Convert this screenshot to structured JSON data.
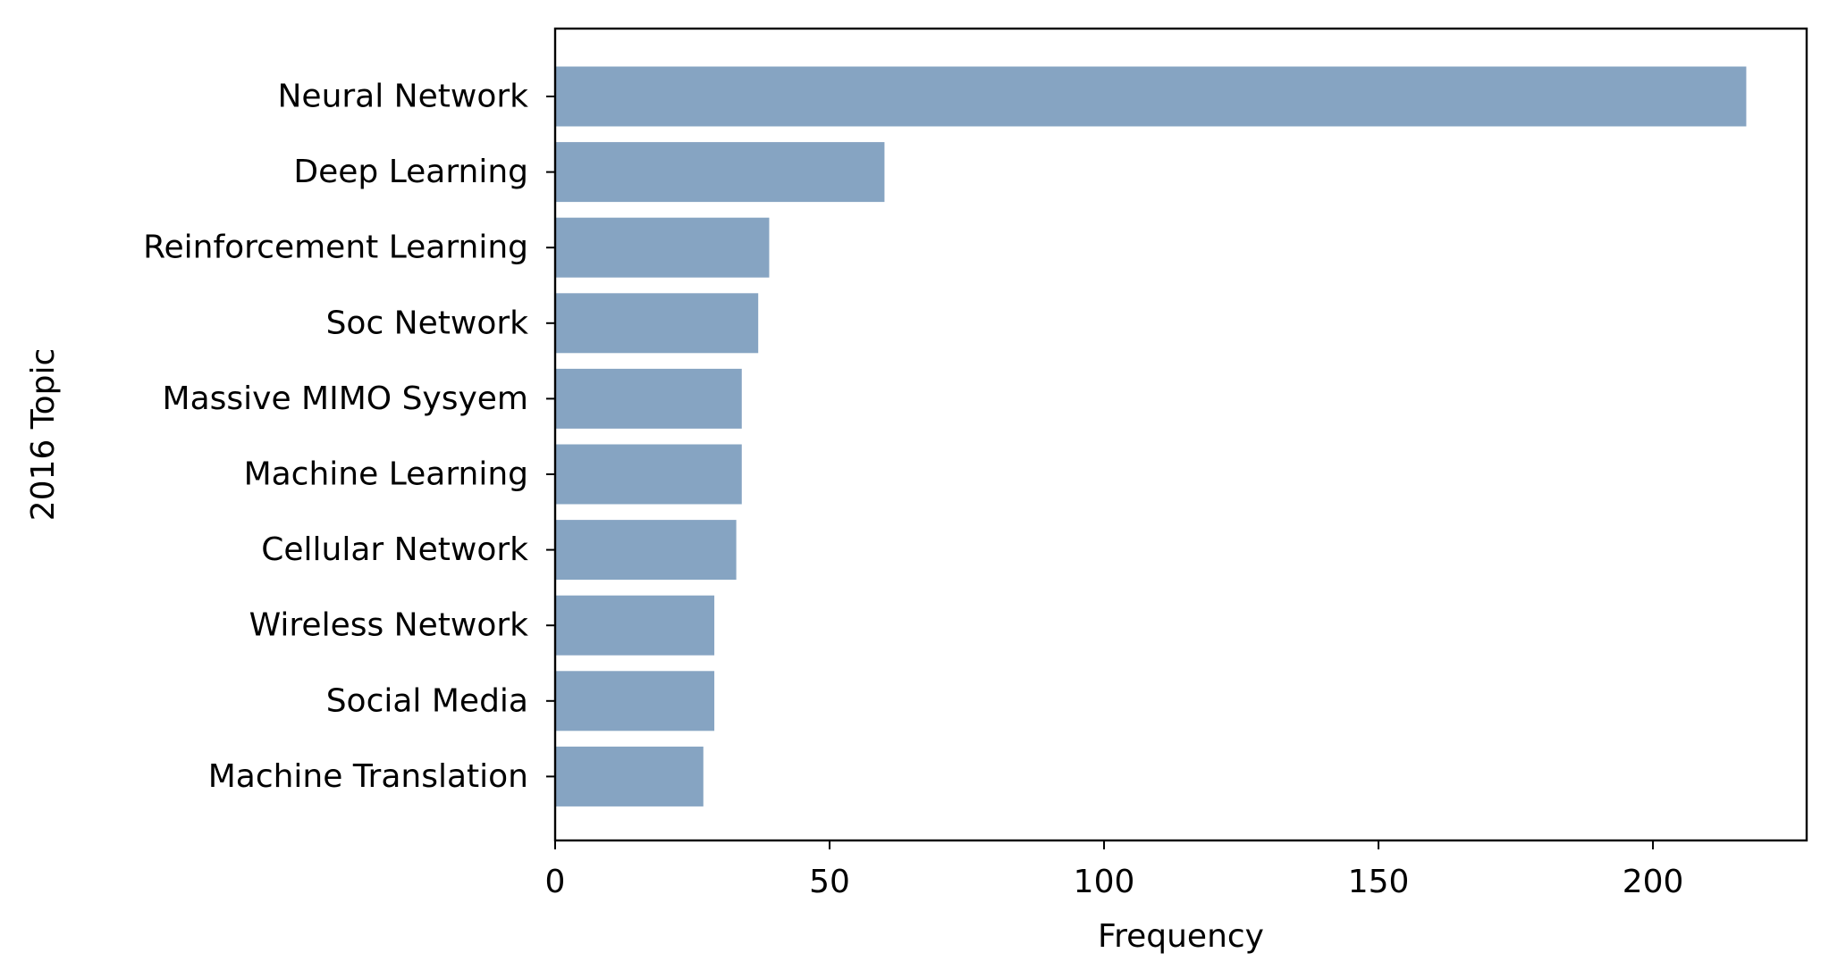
{
  "chart_data": {
    "type": "bar",
    "orientation": "horizontal",
    "categories": [
      "Neural Network",
      "Deep Learning",
      "Reinforcement Learning",
      "Soc Network",
      "Massive MIMO Sysyem",
      "Machine Learning",
      "Cellular Network",
      "Wireless Network",
      "Social Media",
      "Machine Translation"
    ],
    "values": [
      217,
      60,
      39,
      37,
      34,
      34,
      33,
      29,
      29,
      27
    ],
    "xlabel": "Frequency",
    "ylabel": "2016 Topic",
    "xlim": [
      0,
      228
    ],
    "xticks": [
      0,
      50,
      100,
      150,
      200
    ],
    "grid": false,
    "colors": {
      "bar": "#86a4c2",
      "axis": "#000000"
    }
  }
}
